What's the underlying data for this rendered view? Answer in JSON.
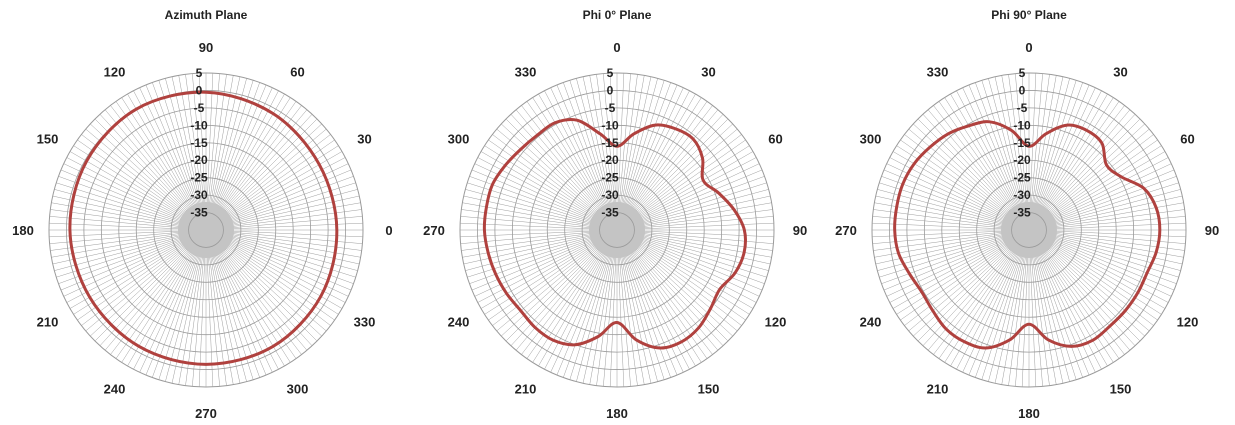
{
  "colors": {
    "trace": "#b0413e",
    "grid_dense": "#9e9e9e",
    "grid": "#9a9a9a",
    "text": "#222222"
  },
  "chart_data": [
    {
      "type": "polar-line",
      "title": "Azimuth Plane",
      "angle_direction": "counterclockwise",
      "zero_position": "right",
      "angle_tick_labels": [
        "0",
        "30",
        "60",
        "90",
        "120",
        "150",
        "180",
        "210",
        "240",
        "270",
        "300",
        "330"
      ],
      "radial_tick_labels": [
        "5",
        "0",
        "-5",
        "-10",
        "-15",
        "-20",
        "-25",
        "-30",
        "-35"
      ],
      "rlim": [
        -40,
        5
      ],
      "unit": "",
      "series": [
        {
          "angles": [
            0,
            30,
            60,
            90,
            120,
            150,
            180,
            210,
            240,
            270,
            300,
            330,
            360
          ],
          "values": [
            -2.5,
            -2.5,
            -1.5,
            -0.5,
            0,
            -0.5,
            -1,
            -1.5,
            -1.5,
            -1.5,
            -1.5,
            -2,
            -2.5
          ]
        }
      ]
    },
    {
      "type": "polar-line",
      "title": "Phi 0° Plane",
      "angle_direction": "clockwise",
      "zero_position": "top",
      "angle_tick_labels": [
        "0",
        "30",
        "60",
        "90",
        "120",
        "150",
        "180",
        "210",
        "240",
        "270",
        "300",
        "330"
      ],
      "radial_tick_labels": [
        "5",
        "0",
        "-5",
        "-10",
        "-15",
        "-20",
        "-25",
        "-30",
        "-35"
      ],
      "rlim": [
        -40,
        5
      ],
      "unit": "",
      "series": [
        {
          "angles": [
            0,
            10,
            20,
            30,
            40,
            50,
            60,
            70,
            80,
            90,
            100,
            110,
            120,
            130,
            140,
            150,
            160,
            170,
            180,
            190,
            200,
            210,
            220,
            230,
            240,
            250,
            260,
            270,
            280,
            290,
            300,
            310,
            320,
            330,
            340,
            350,
            360
          ],
          "values": [
            -16,
            -12,
            -8,
            -6.5,
            -6,
            -8,
            -11.5,
            -9,
            -6,
            -3.5,
            -3,
            -4,
            -6,
            -5,
            -3.5,
            -3,
            -4,
            -8,
            -13.5,
            -9,
            -5,
            -3.5,
            -3.5,
            -4,
            -3.5,
            -3,
            -2.5,
            -2,
            -2,
            -2,
            -3,
            -4,
            -4.5,
            -4.5,
            -6.5,
            -12,
            -16
          ]
        }
      ]
    },
    {
      "type": "polar-line",
      "title": "Phi 90° Plane",
      "angle_direction": "clockwise",
      "zero_position": "top",
      "angle_tick_labels": [
        "0",
        "30",
        "60",
        "90",
        "120",
        "150",
        "180",
        "210",
        "240",
        "270",
        "300",
        "330"
      ],
      "radial_tick_labels": [
        "5",
        "0",
        "-5",
        "-10",
        "-15",
        "-20",
        "-25",
        "-30",
        "-35"
      ],
      "rlim": [
        -40,
        5
      ],
      "unit": "",
      "series": [
        {
          "angles": [
            0,
            10,
            20,
            30,
            40,
            50,
            60,
            70,
            80,
            90,
            100,
            110,
            120,
            130,
            140,
            150,
            160,
            170,
            180,
            190,
            200,
            210,
            220,
            230,
            240,
            250,
            260,
            270,
            280,
            290,
            300,
            310,
            320,
            330,
            340,
            350,
            360
          ],
          "values": [
            -16,
            -12,
            -8,
            -7,
            -7.5,
            -11,
            -9.5,
            -5,
            -3,
            -2.5,
            -3,
            -4,
            -4,
            -4,
            -4,
            -3.5,
            -4.5,
            -8,
            -13,
            -8,
            -4,
            -3,
            -3,
            -4,
            -4.5,
            -3.5,
            -2,
            -1.5,
            -1.5,
            -1.5,
            -2,
            -3,
            -4,
            -5.5,
            -7,
            -11,
            -16
          ]
        }
      ]
    }
  ]
}
